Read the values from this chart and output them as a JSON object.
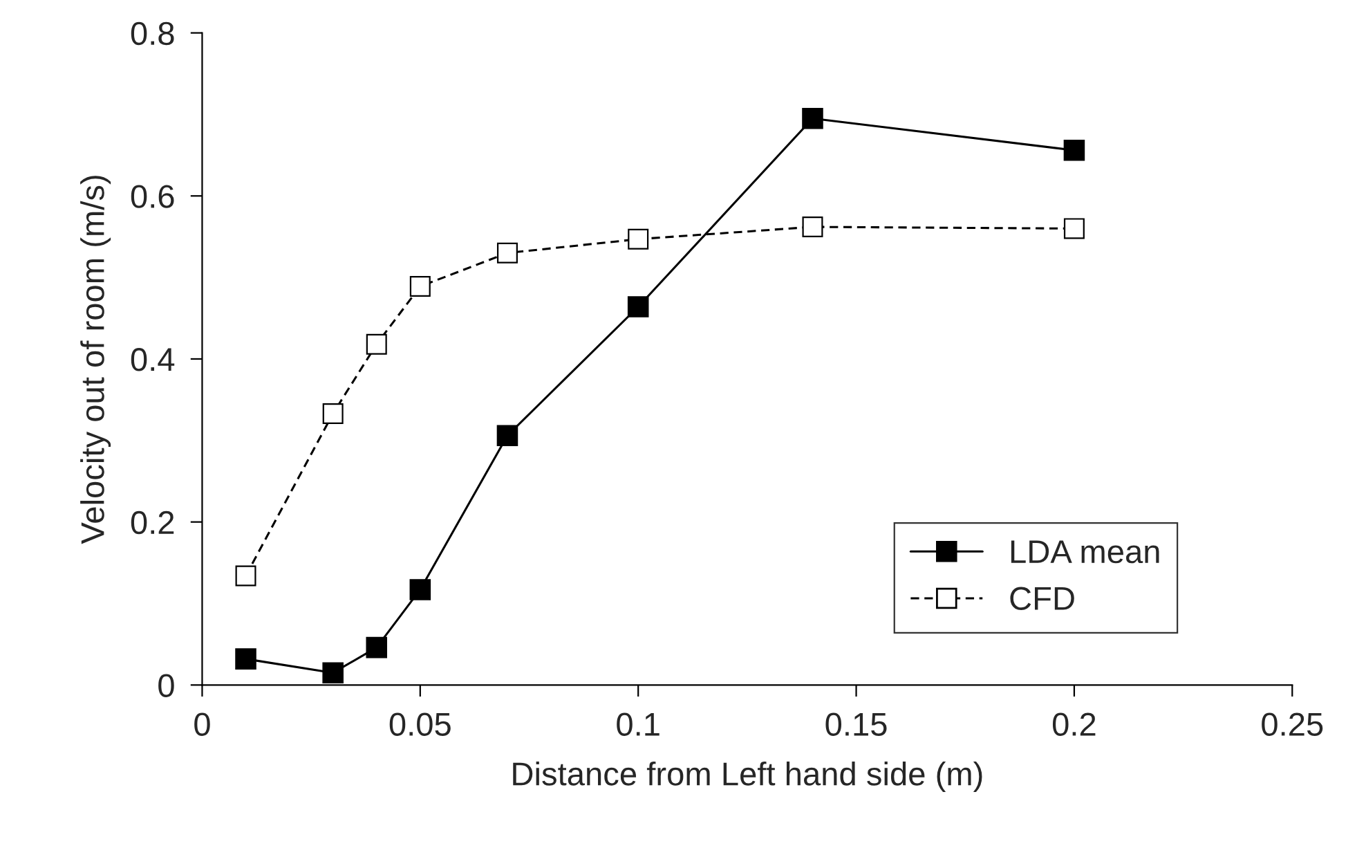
{
  "chart_data": {
    "type": "line",
    "xlabel": "Distance from Left hand side (m)",
    "ylabel": "Velocity out of room (m/s)",
    "x": [
      0.01,
      0.03,
      0.04,
      0.05,
      0.07,
      0.1,
      0.14,
      0.2
    ],
    "series": [
      {
        "name": "LDA mean",
        "color": "#000000",
        "line_style": "solid",
        "values": [
          0.032,
          0.015,
          0.046,
          0.117,
          0.306,
          0.464,
          0.695,
          0.656
        ]
      },
      {
        "name": "CFD",
        "color": "#000000",
        "line_style": "dashed",
        "values": [
          0.134,
          0.333,
          0.418,
          0.489,
          0.53,
          0.547,
          0.562,
          0.56
        ]
      }
    ],
    "xlim": [
      0,
      0.25
    ],
    "xticks": [
      0,
      0.05,
      0.1,
      0.15,
      0.2,
      0.25
    ],
    "ylim": [
      0,
      0.8
    ],
    "yticks": [
      0,
      0.2,
      0.4,
      0.6,
      0.8
    ],
    "marker": "square",
    "grid": false,
    "legend": "bottom right"
  }
}
